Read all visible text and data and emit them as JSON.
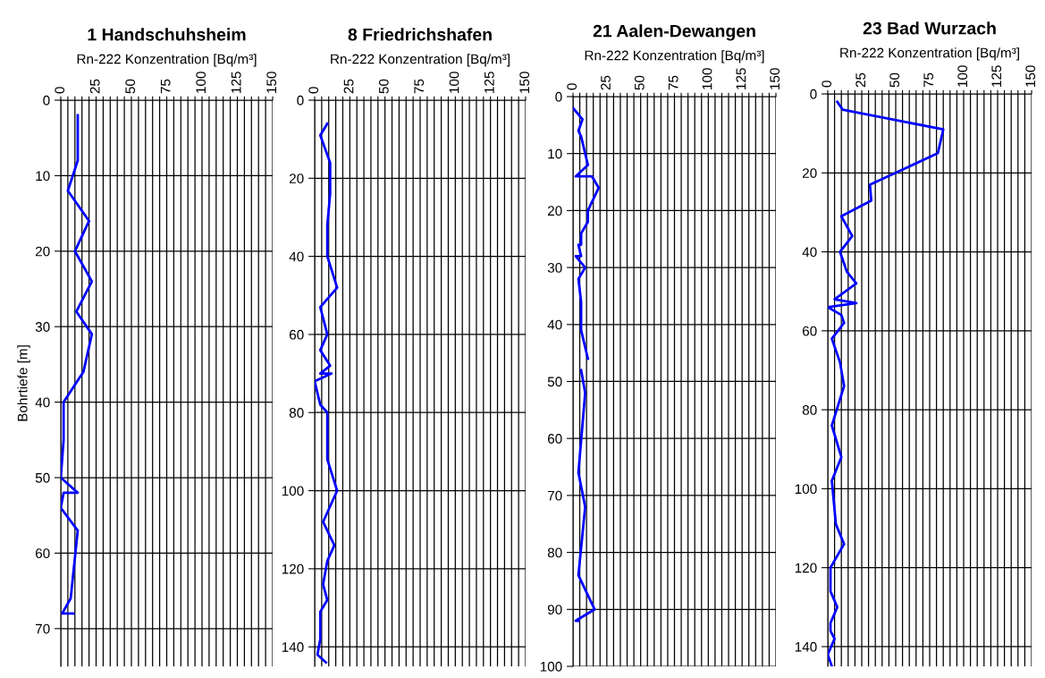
{
  "chart_data": [
    {
      "type": "line",
      "title": "1 Handschuhsheim",
      "xlabel": "Rn-222 Konzentration [Bq/m³]",
      "ylabel": "Bohrtiefe [m]",
      "grid": true,
      "marker": "none",
      "line_style": "solid",
      "xlim": [
        0,
        150
      ],
      "xticks": [
        0,
        {
          "value": 5,
          "label": null
        },
        {
          "value": 10,
          "label": null
        },
        {
          "value": 15,
          "label": null
        },
        {
          "value": 20,
          "label": null
        },
        25,
        {
          "value": 30,
          "label": null
        },
        {
          "value": 35,
          "label": null
        },
        {
          "value": 40,
          "label": null
        },
        {
          "value": 45,
          "label": null
        },
        50,
        {
          "value": 55,
          "label": null
        },
        {
          "value": 60,
          "label": null
        },
        {
          "value": 65,
          "label": null
        },
        {
          "value": 70,
          "label": null
        },
        75,
        {
          "value": 80,
          "label": null
        },
        {
          "value": 85,
          "label": null
        },
        {
          "value": 90,
          "label": null
        },
        {
          "value": 95,
          "label": null
        },
        100,
        {
          "value": 105,
          "label": null
        },
        {
          "value": 110,
          "label": null
        },
        {
          "value": 115,
          "label": null
        },
        {
          "value": 120,
          "label": null
        },
        125,
        {
          "value": 130,
          "label": null
        },
        {
          "value": 135,
          "label": null
        },
        {
          "value": 140,
          "label": null
        },
        {
          "value": 145,
          "label": null
        },
        150
      ],
      "ylim": [
        75,
        0
      ],
      "yticks": [
        0,
        10,
        20,
        30,
        40,
        50,
        60,
        70
      ],
      "series": [
        {
          "color": "#0000ff",
          "x": [
            12,
            12,
            5,
            20,
            10,
            22,
            11,
            22,
            16,
            2,
            2,
            0,
            12,
            2,
            0,
            12,
            7,
            1,
            9
          ],
          "values": [
            2,
            8,
            12,
            16,
            20,
            24,
            28,
            31,
            36,
            40,
            45,
            50,
            52,
            52,
            54,
            57,
            66,
            68,
            68
          ]
        }
      ]
    },
    {
      "type": "line",
      "title": "8 Friedrichshafen",
      "xlabel": "Rn-222 Konzentration [Bq/m³]",
      "grid": true,
      "marker": "none",
      "line_style": "solid",
      "xlim": [
        0,
        150
      ],
      "xticks": [
        0,
        {
          "value": 5,
          "label": null
        },
        {
          "value": 10,
          "label": null
        },
        {
          "value": 15,
          "label": null
        },
        {
          "value": 20,
          "label": null
        },
        25,
        {
          "value": 30,
          "label": null
        },
        {
          "value": 35,
          "label": null
        },
        {
          "value": 40,
          "label": null
        },
        {
          "value": 45,
          "label": null
        },
        50,
        {
          "value": 55,
          "label": null
        },
        {
          "value": 60,
          "label": null
        },
        {
          "value": 65,
          "label": null
        },
        {
          "value": 70,
          "label": null
        },
        75,
        {
          "value": 80,
          "label": null
        },
        {
          "value": 85,
          "label": null
        },
        {
          "value": 90,
          "label": null
        },
        {
          "value": 95,
          "label": null
        },
        100,
        {
          "value": 105,
          "label": null
        },
        {
          "value": 110,
          "label": null
        },
        {
          "value": 115,
          "label": null
        },
        {
          "value": 120,
          "label": null
        },
        125,
        {
          "value": 130,
          "label": null
        },
        {
          "value": 135,
          "label": null
        },
        {
          "value": 140,
          "label": null
        },
        {
          "value": 145,
          "label": null
        },
        150
      ],
      "ylim": [
        145,
        0
      ],
      "yticks": [
        0,
        20,
        40,
        60,
        80,
        100,
        120,
        140
      ],
      "series": [
        {
          "color": "#0000ff",
          "x": [
            9,
            4,
            11,
            11,
            9,
            9,
            16,
            4,
            9,
            4,
            11,
            4,
            12,
            0,
            4,
            9,
            9,
            16,
            6,
            14,
            9,
            6,
            9,
            4,
            4,
            2,
            8
          ],
          "values": [
            6,
            9,
            16,
            24,
            32,
            40,
            48,
            53,
            60,
            64,
            68,
            70,
            70,
            72,
            78,
            80,
            92,
            100,
            108,
            114,
            118,
            124,
            128,
            131,
            138,
            142,
            144
          ]
        }
      ]
    },
    {
      "type": "line",
      "title": "21 Aalen-Dewangen",
      "xlabel": "Rn-222 Konzentration [Bq/m³]",
      "grid": true,
      "marker": "none",
      "line_style": "solid",
      "xlim": [
        0,
        150
      ],
      "xticks": [
        0,
        {
          "value": 5,
          "label": null
        },
        {
          "value": 10,
          "label": null
        },
        {
          "value": 15,
          "label": null
        },
        {
          "value": 20,
          "label": null
        },
        25,
        {
          "value": 30,
          "label": null
        },
        {
          "value": 35,
          "label": null
        },
        {
          "value": 40,
          "label": null
        },
        {
          "value": 45,
          "label": null
        },
        50,
        {
          "value": 55,
          "label": null
        },
        {
          "value": 60,
          "label": null
        },
        {
          "value": 65,
          "label": null
        },
        {
          "value": 70,
          "label": null
        },
        75,
        {
          "value": 80,
          "label": null
        },
        {
          "value": 85,
          "label": null
        },
        {
          "value": 90,
          "label": null
        },
        {
          "value": 95,
          "label": null
        },
        100,
        {
          "value": 105,
          "label": null
        },
        {
          "value": 110,
          "label": null
        },
        {
          "value": 115,
          "label": null
        },
        {
          "value": 120,
          "label": null
        },
        125,
        {
          "value": 130,
          "label": null
        },
        {
          "value": 135,
          "label": null
        },
        {
          "value": 140,
          "label": null
        },
        {
          "value": 145,
          "label": null
        },
        150
      ],
      "ylim": [
        100,
        0
      ],
      "yticks": [
        0,
        10,
        20,
        30,
        40,
        50,
        60,
        70,
        80,
        90,
        100
      ],
      "series": [
        {
          "color": "#0000ff",
          "x": [
            0,
            7,
            4,
            6,
            11,
            2,
            14,
            19,
            11,
            11,
            6,
            6,
            4,
            6,
            2,
            9,
            4,
            6,
            6,
            11,
            null,
            6,
            9,
            4,
            9,
            4,
            16,
            2,
            4
          ],
          "values": [
            2,
            4,
            6,
            7,
            12,
            14,
            14,
            16,
            20,
            22,
            24,
            26,
            26,
            28,
            28,
            30,
            32,
            36,
            41,
            46,
            null,
            48,
            52,
            66,
            72,
            84,
            90,
            92,
            92
          ]
        }
      ]
    },
    {
      "type": "line",
      "title": "23 Bad Wurzach",
      "xlabel": "Rn-222 Konzentration [Bq/m³]",
      "grid": true,
      "marker": "none",
      "line_style": "solid",
      "xlim": [
        0,
        150
      ],
      "xticks": [
        0,
        {
          "value": 5,
          "label": null
        },
        {
          "value": 10,
          "label": null
        },
        {
          "value": 15,
          "label": null
        },
        {
          "value": 20,
          "label": null
        },
        25,
        {
          "value": 30,
          "label": null
        },
        {
          "value": 35,
          "label": null
        },
        {
          "value": 40,
          "label": null
        },
        {
          "value": 45,
          "label": null
        },
        50,
        {
          "value": 55,
          "label": null
        },
        {
          "value": 60,
          "label": null
        },
        {
          "value": 65,
          "label": null
        },
        {
          "value": 70,
          "label": null
        },
        75,
        {
          "value": 80,
          "label": null
        },
        {
          "value": 85,
          "label": null
        },
        {
          "value": 90,
          "label": null
        },
        {
          "value": 95,
          "label": null
        },
        100,
        {
          "value": 105,
          "label": null
        },
        {
          "value": 110,
          "label": null
        },
        {
          "value": 115,
          "label": null
        },
        {
          "value": 120,
          "label": null
        },
        125,
        {
          "value": 130,
          "label": null
        },
        {
          "value": 135,
          "label": null
        },
        {
          "value": 140,
          "label": null
        },
        {
          "value": 145,
          "label": null
        },
        150
      ],
      "ylim": [
        145,
        0
      ],
      "yticks": [
        0,
        20,
        40,
        60,
        80,
        100,
        120,
        140
      ],
      "series": [
        {
          "color": "#0000ff",
          "x": [
            7,
            11,
            85,
            81,
            31,
            32,
            10,
            18,
            9,
            14,
            21,
            5,
            21,
            0,
            10,
            11,
            12,
            3,
            9,
            12,
            3,
            10,
            3,
            6,
            12,
            2,
            2,
            7,
            2,
            2,
            5,
            0,
            3
          ],
          "values": [
            2,
            4,
            9,
            15,
            23,
            27,
            31,
            36,
            40,
            45,
            48,
            52,
            53,
            54,
            56,
            57,
            58,
            62,
            68,
            74,
            84,
            92,
            98,
            109,
            114,
            120,
            126,
            130,
            134,
            136,
            138,
            142,
            145
          ]
        }
      ]
    }
  ]
}
